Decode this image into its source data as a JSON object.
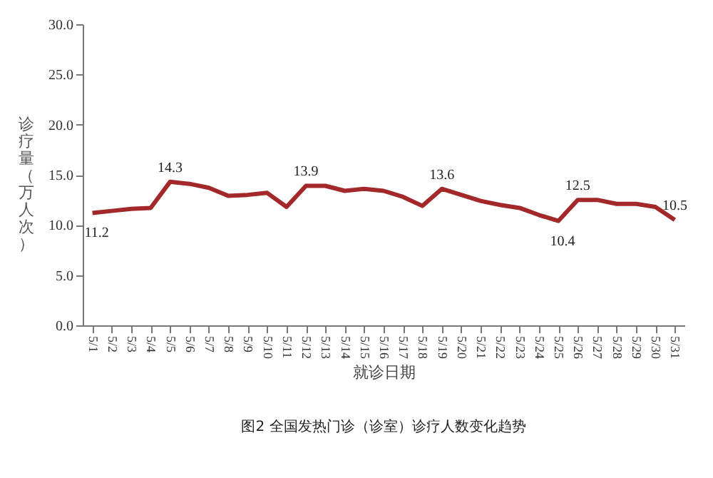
{
  "chart_data": {
    "type": "line",
    "xlabel": "就诊日期",
    "ylabel": "诊疗量（万人次）",
    "annotations": [
      "图2 全国发热门诊（诊室）诊疗人数变化趋势"
    ],
    "categories": [
      "5/1",
      "5/2",
      "5/3",
      "5/4",
      "5/5",
      "5/6",
      "5/7",
      "5/8",
      "5/9",
      "5/10",
      "5/11",
      "5/12",
      "5/13",
      "5/14",
      "5/15",
      "5/16",
      "5/17",
      "5/18",
      "5/19",
      "5/20",
      "5/21",
      "5/22",
      "5/23",
      "5/24",
      "5/25",
      "5/26",
      "5/27",
      "5/28",
      "5/29",
      "5/30",
      "5/31"
    ],
    "series": [
      {
        "color": "#a3282a",
        "values": [
          11.2,
          11.4,
          11.6,
          11.7,
          14.3,
          14.1,
          13.7,
          12.9,
          13.0,
          13.2,
          11.8,
          13.9,
          13.9,
          13.4,
          13.6,
          13.4,
          12.8,
          11.9,
          13.6,
          13.0,
          12.4,
          12.0,
          11.7,
          11.0,
          10.4,
          12.5,
          12.5,
          12.1,
          12.1,
          11.8,
          10.5
        ],
        "value_labels": [
          "11.2",
          null,
          null,
          null,
          "14.3",
          null,
          null,
          null,
          null,
          null,
          null,
          "13.9",
          null,
          null,
          null,
          null,
          null,
          null,
          "13.6",
          null,
          null,
          null,
          null,
          null,
          "10.4",
          "12.5",
          null,
          null,
          null,
          null,
          "10.5"
        ]
      }
    ],
    "ylim": [
      0,
      30
    ],
    "yticks": [
      {
        "value": 0,
        "label": "0.0"
      },
      {
        "value": 5,
        "label": "5.0"
      },
      {
        "value": 10,
        "label": "10.0"
      },
      {
        "value": 15,
        "label": "15.0"
      },
      {
        "value": 20,
        "label": "20.0"
      },
      {
        "value": 25,
        "label": "25.0"
      },
      {
        "value": 30,
        "label": "30.0"
      }
    ],
    "grid": false,
    "marker": "none",
    "line_style": "solid"
  }
}
